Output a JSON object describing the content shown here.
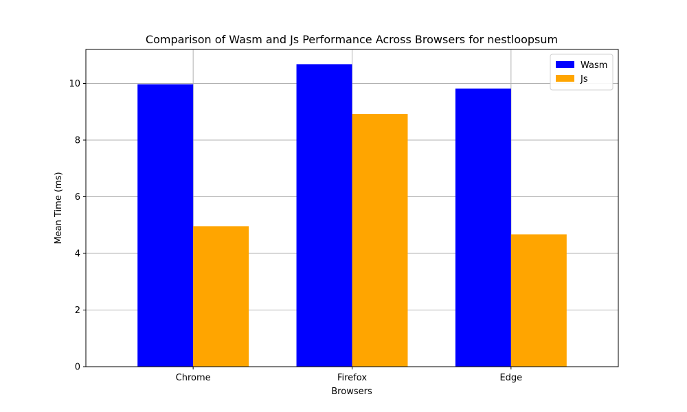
{
  "chart_data": {
    "type": "bar",
    "title": "Comparison of Wasm and Js Performance Across Browsers for nestloopsum",
    "xlabel": "Browsers",
    "ylabel": "Mean Time (ms)",
    "categories": [
      "Chrome",
      "Firefox",
      "Edge"
    ],
    "series": [
      {
        "name": "Wasm",
        "color": "#0000ff",
        "values": [
          9.97,
          10.68,
          9.82
        ]
      },
      {
        "name": "Js",
        "color": "#ffa500",
        "values": [
          4.96,
          8.92,
          4.67
        ]
      }
    ],
    "ylim": [
      0,
      11.2
    ],
    "yticks": [
      0,
      2,
      4,
      6,
      8,
      10
    ],
    "grid": true,
    "legend_position": "top-right"
  }
}
